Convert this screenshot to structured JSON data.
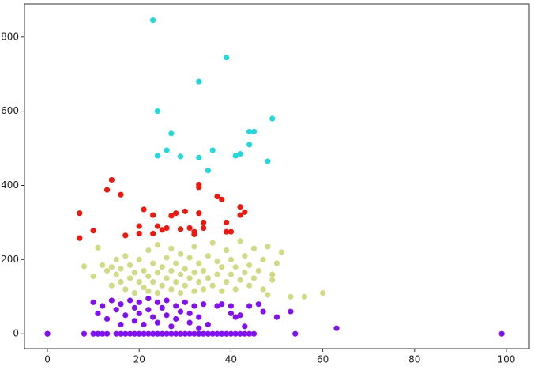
{
  "chart_data": {
    "type": "scatter",
    "xlim": [
      -5,
      105
    ],
    "ylim": [
      -40,
      889
    ],
    "xticks": [
      0,
      20,
      40,
      60,
      80,
      100
    ],
    "yticks": [
      0,
      200,
      400,
      600,
      800
    ],
    "grid": false,
    "series": [
      {
        "color": "#7f12ef",
        "x": [
          0,
          0,
          8,
          10,
          11,
          12,
          13,
          15,
          16,
          17,
          18,
          19,
          20,
          21,
          22,
          23,
          24,
          25,
          26,
          27,
          28,
          29,
          30,
          31,
          32,
          33,
          34,
          35,
          36,
          37,
          38,
          39,
          40,
          41,
          42,
          43,
          44,
          45,
          54,
          99,
          10,
          11,
          12,
          13,
          14,
          15,
          16,
          16,
          17,
          18,
          19,
          19,
          20,
          20,
          21,
          22,
          22,
          23,
          24,
          24,
          25,
          26,
          26,
          27,
          28,
          28,
          29,
          30,
          31,
          31,
          32,
          33,
          33,
          34,
          35,
          37,
          38,
          40,
          40,
          41,
          42,
          43,
          44,
          46,
          47,
          50,
          53,
          63
        ],
        "values": [
          0,
          0,
          0,
          0,
          0,
          0,
          0,
          0,
          0,
          0,
          0,
          0,
          0,
          0,
          0,
          0,
          0,
          0,
          0,
          0,
          0,
          0,
          0,
          0,
          0,
          0,
          0,
          0,
          0,
          0,
          0,
          0,
          0,
          0,
          0,
          0,
          0,
          0,
          0,
          0,
          85,
          55,
          75,
          40,
          90,
          65,
          25,
          80,
          50,
          90,
          35,
          70,
          85,
          55,
          25,
          95,
          65,
          45,
          85,
          30,
          70,
          50,
          90,
          20,
          75,
          40,
          60,
          85,
          30,
          55,
          75,
          15,
          45,
          80,
          25,
          75,
          80,
          75,
          55,
          45,
          50,
          20,
          75,
          80,
          60,
          45,
          60,
          15
        ]
      },
      {
        "color": "#d2da86",
        "x": [
          8,
          11,
          10,
          12,
          13,
          14,
          14,
          15,
          15,
          16,
          16,
          17,
          17,
          18,
          18,
          19,
          19,
          20,
          20,
          21,
          21,
          22,
          22,
          22,
          23,
          23,
          24,
          24,
          24,
          25,
          25,
          26,
          26,
          27,
          27,
          27,
          28,
          28,
          29,
          29,
          29,
          30,
          30,
          31,
          31,
          32,
          32,
          32,
          33,
          33,
          34,
          34,
          35,
          35,
          36,
          36,
          37,
          37,
          38,
          38,
          39,
          39,
          40,
          40,
          41,
          41,
          42,
          42,
          43,
          43,
          44,
          44,
          45,
          45,
          46,
          47,
          47,
          48,
          49,
          49,
          50,
          51,
          56,
          60,
          53,
          48
        ],
        "values": [
          182,
          232,
          155,
          185,
          170,
          130,
          180,
          160,
          200,
          140,
          175,
          120,
          210,
          150,
          185,
          110,
          165,
          140,
          200,
          125,
          170,
          115,
          155,
          225,
          140,
          190,
          110,
          165,
          240,
          130,
          180,
          150,
          205,
          120,
          170,
          230,
          140,
          190,
          110,
          160,
          215,
          130,
          175,
          150,
          205,
          115,
          165,
          235,
          140,
          190,
          120,
          170,
          150,
          210,
          130,
          245,
          160,
          195,
          115,
          180,
          140,
          225,
          160,
          200,
          120,
          180,
          145,
          250,
          165,
          210,
          130,
          185,
          150,
          230,
          170,
          120,
          200,
          235,
          160,
          145,
          190,
          220,
          100,
          110,
          100,
          105
        ]
      },
      {
        "color": "#ea1a10",
        "x": [
          7,
          7,
          10,
          13,
          14,
          16,
          17,
          20,
          20,
          21,
          23,
          23,
          24,
          25,
          26,
          27,
          28,
          29,
          30,
          31,
          32,
          32,
          33,
          33,
          33,
          34,
          34,
          37,
          38,
          39,
          39,
          40,
          42,
          42,
          43
        ],
        "values": [
          325,
          258,
          278,
          388,
          415,
          375,
          265,
          290,
          270,
          335,
          320,
          270,
          290,
          280,
          285,
          318,
          325,
          282,
          330,
          285,
          275,
          268,
          395,
          402,
          325,
          300,
          285,
          370,
          362,
          300,
          275,
          275,
          342,
          320,
          328
        ]
      },
      {
        "color": "#26d8dc",
        "x": [
          23,
          39,
          33,
          24,
          49,
          27,
          44,
          45,
          44,
          26,
          36,
          41,
          42,
          24,
          29,
          33,
          48,
          35
        ],
        "values": [
          845,
          745,
          680,
          600,
          580,
          540,
          545,
          545,
          510,
          495,
          495,
          480,
          485,
          480,
          478,
          475,
          465,
          440
        ]
      }
    ]
  }
}
